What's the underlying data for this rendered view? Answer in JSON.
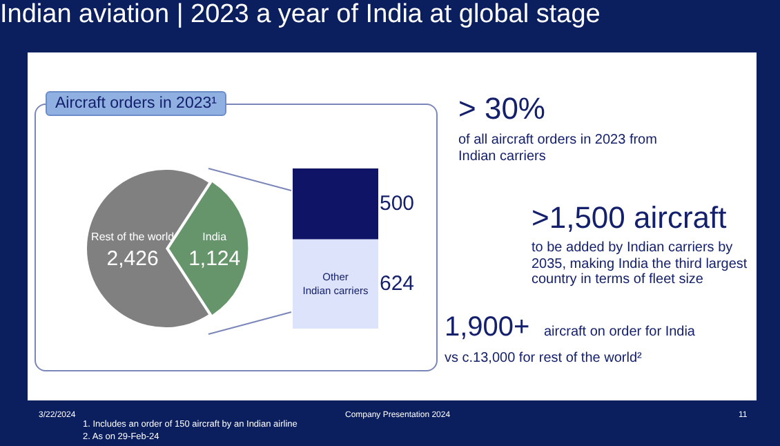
{
  "chart_data": [
    {
      "type": "pie",
      "title": "Indian aviation | 2023 a year of India at global stage",
      "subtitle": "Aircraft orders in 2023¹",
      "categories": [
        "Rest of the world",
        "India"
      ],
      "values": [
        2426,
        1124
      ],
      "colors": [
        "#808080",
        "#66956c"
      ],
      "value_labels": [
        "2,426",
        "1,124"
      ],
      "legend": false,
      "annotations": [
        "> 30%",
        "of all aircraft orders in 2023 from Indian carriers",
        ">1,500 aircraft",
        "to be added by Indian carriers by 2035, making India the third largest country in terms of fleet size",
        "1,900+",
        "aircraft on order for India",
        "vs c.13,000 for rest of the world²",
        "3/22/2024",
        "Company Presentation 2024",
        "11",
        "1.   Includes an order of 150 aircraft by an Indian airline",
        "2.   As on 29-Feb-24"
      ]
    },
    {
      "type": "bar",
      "stacked": true,
      "categories": [
        null
      ],
      "data_labels": true,
      "legend": false,
      "series": [
        {
          "name": "Other Indian carriers",
          "color": "#dde3fb",
          "values": [
            624
          ]
        },
        {
          "color": "#0f1466",
          "values": [
            500
          ]
        }
      ]
    }
  ]
}
